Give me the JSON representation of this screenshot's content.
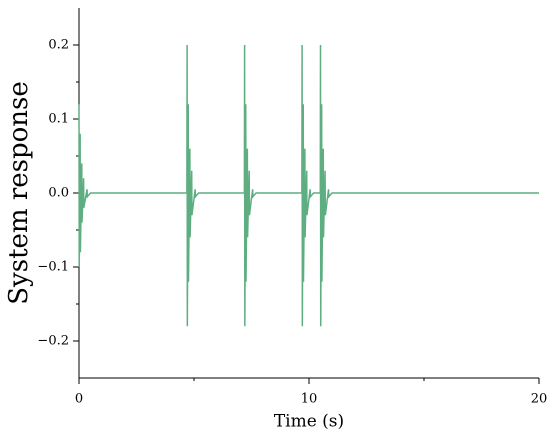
{
  "chart_data": {
    "type": "line",
    "xlabel": "Time (s)",
    "ylabel": "System response",
    "color": "#5fae82",
    "xlim": [
      0,
      20
    ],
    "xticks": [
      0,
      10,
      20
    ],
    "xminorticks": [
      5,
      15
    ],
    "ylim": [
      -0.25,
      0.25
    ],
    "yticks": [
      {
        "value": -0.2,
        "label": "−0.2"
      },
      {
        "value": -0.1,
        "label": "−0.1"
      },
      {
        "value": 0,
        "label": "0.0"
      },
      0.1,
      0.2
    ],
    "yminorticks": [
      -0.15,
      -0.05,
      0.05,
      0.15
    ],
    "x": [
      0,
      0.01,
      0.05,
      0.06,
      0.12,
      0.13,
      0.2,
      0.21,
      0.35,
      0.36,
      0.5,
      4.69,
      4.7,
      4.71,
      4.75,
      4.76,
      4.82,
      4.83,
      4.9,
      4.91,
      5.05,
      5.06,
      5.2,
      7.19,
      7.2,
      7.21,
      7.25,
      7.26,
      7.32,
      7.33,
      7.4,
      7.41,
      7.55,
      7.56,
      7.7,
      9.69,
      9.7,
      9.71,
      9.75,
      9.76,
      9.82,
      9.83,
      9.9,
      9.91,
      10.05,
      10.06,
      10.2,
      10.49,
      10.5,
      10.51,
      10.55,
      10.56,
      10.62,
      10.63,
      10.7,
      10.71,
      10.85,
      10.86,
      11,
      20
    ],
    "values": [
      0.12,
      -0.1,
      0.08,
      -0.08,
      0.04,
      -0.04,
      0.02,
      -0.02,
      0.005,
      -0.005,
      0,
      0,
      0.2,
      -0.18,
      0.12,
      -0.12,
      0.06,
      -0.06,
      0.03,
      -0.03,
      0.005,
      -0.005,
      0,
      0,
      0.2,
      -0.18,
      0.12,
      -0.12,
      0.06,
      -0.06,
      0.03,
      -0.03,
      0.005,
      -0.005,
      0,
      0,
      0.2,
      -0.18,
      0.12,
      -0.12,
      0.06,
      -0.06,
      0.03,
      -0.03,
      0.005,
      -0.005,
      0,
      0,
      0.2,
      -0.18,
      0.12,
      -0.12,
      0.06,
      -0.06,
      0.03,
      -0.03,
      0.005,
      -0.005,
      0,
      0
    ]
  }
}
